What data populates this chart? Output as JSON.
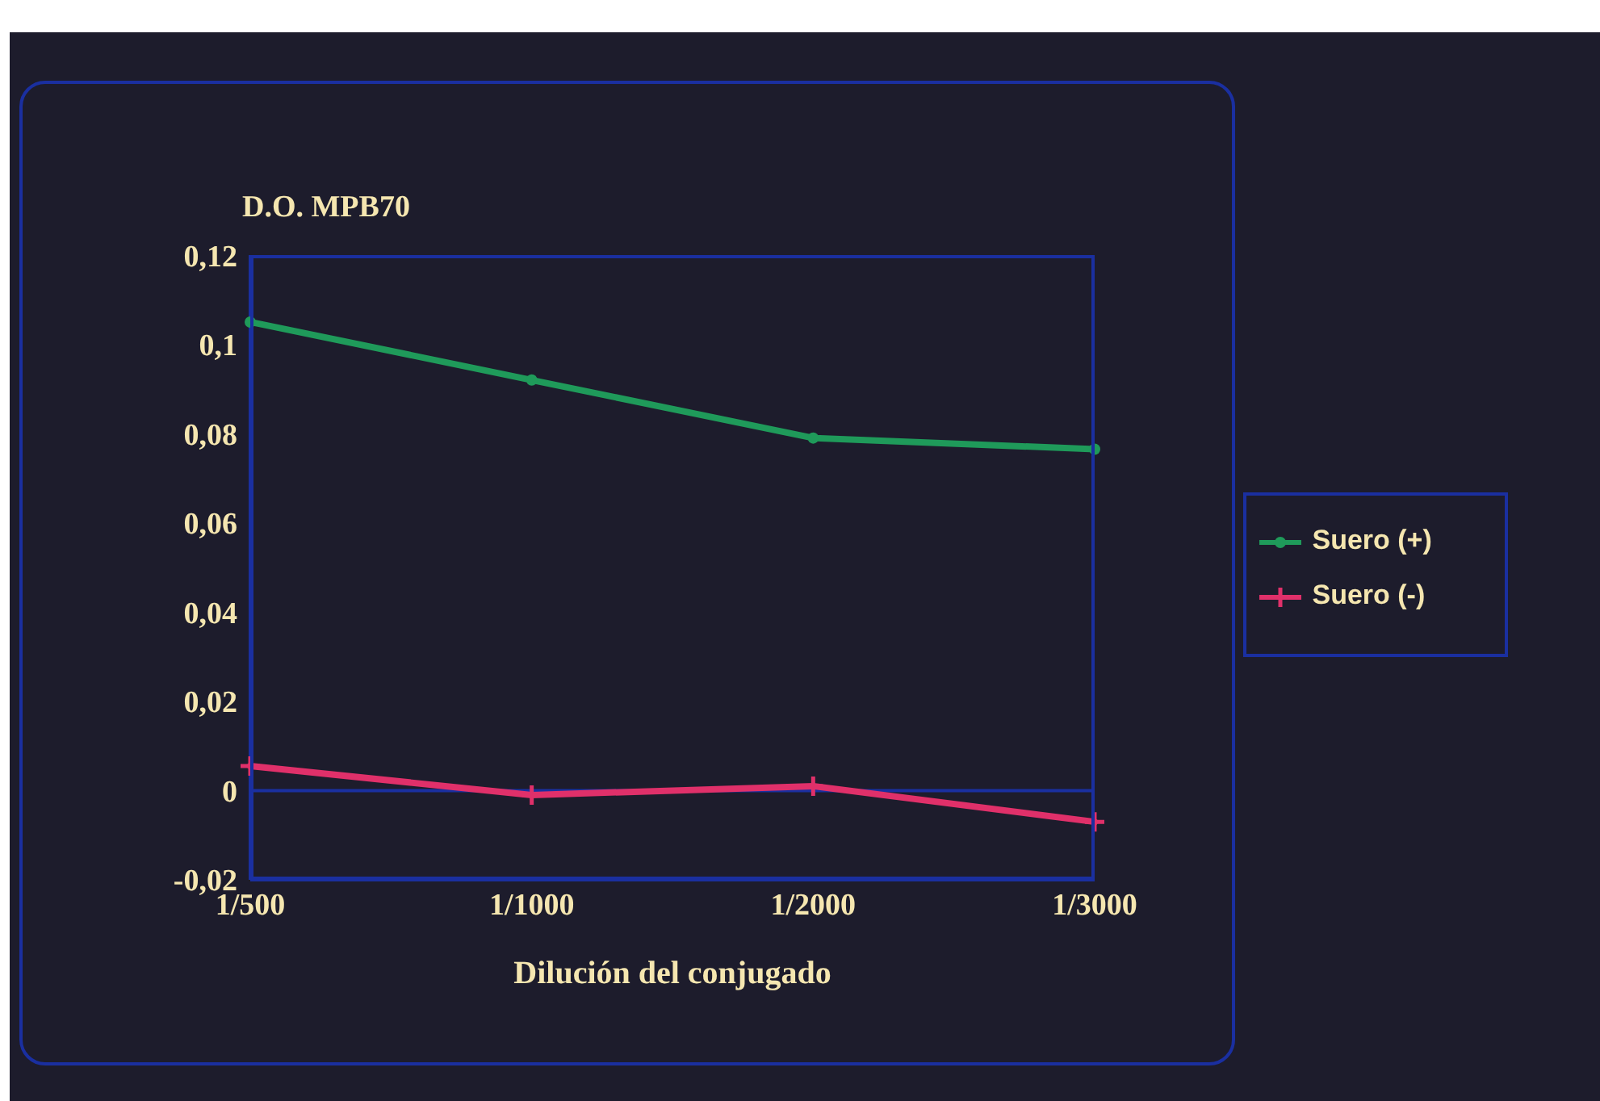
{
  "chart_data": {
    "type": "line",
    "ylabel": "D.O. MPB70",
    "xlabel": "Dilución del conjugado",
    "categories": [
      "1/500",
      "1/1000",
      "1/2000",
      "1/3000"
    ],
    "series": [
      {
        "name": "Suero (+)",
        "color": "#1f9a5a",
        "marker": "circle",
        "values": [
          0.105,
          0.092,
          0.079,
          0.0765
        ]
      },
      {
        "name": "Suero (-)",
        "color": "#e0306a",
        "marker": "cross",
        "values": [
          0.0055,
          -0.001,
          0.001,
          -0.007
        ]
      }
    ],
    "ylim": [
      -0.02,
      0.12
    ],
    "yticks": [
      {
        "value": -0.02,
        "label": "-0,02"
      },
      {
        "value": 0,
        "label": "0"
      },
      {
        "value": 0.02,
        "label": "0,02"
      },
      {
        "value": 0.04,
        "label": "0,04"
      },
      {
        "value": 0.06,
        "label": "0,06"
      },
      {
        "value": 0.08,
        "label": "0,08"
      },
      {
        "value": 0.1,
        "label": "0,1"
      },
      {
        "value": 0.12,
        "label": "0,12"
      }
    ],
    "ref_lines": [
      {
        "axis": "y",
        "value": 0,
        "color": "#1a2fa0"
      }
    ],
    "legend": "right",
    "grid": false
  }
}
